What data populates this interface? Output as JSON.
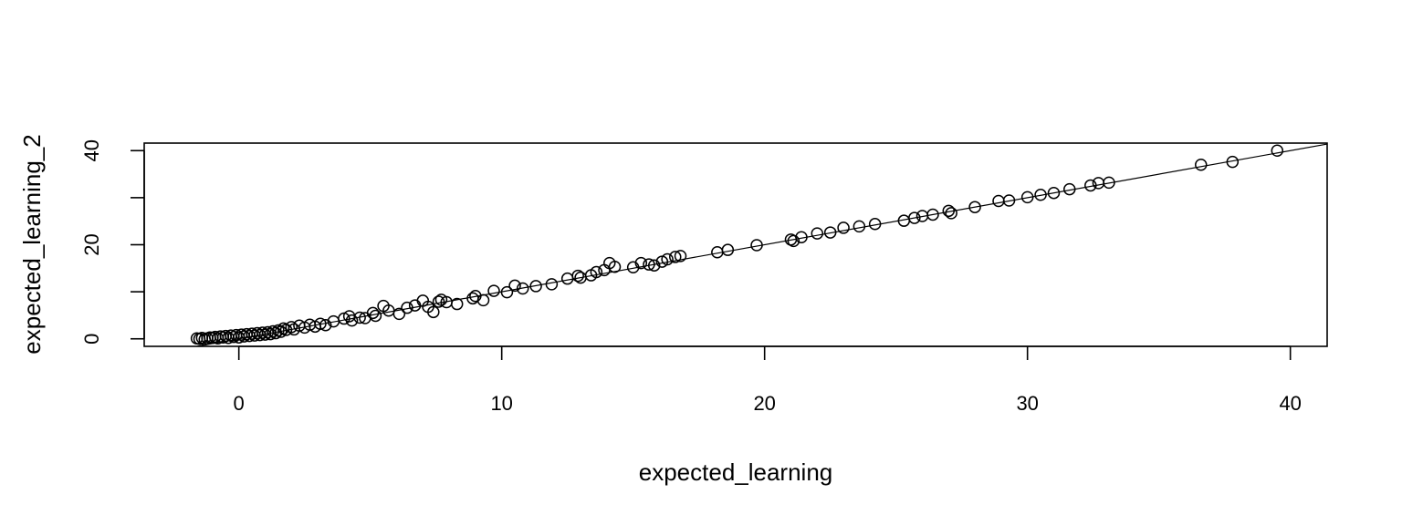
{
  "chart_data": {
    "type": "scatter",
    "title": "",
    "xlabel": "expected_learning",
    "ylabel": "expected_learning_2",
    "xlim": [
      -3.6,
      41.4
    ],
    "ylim": [
      -1.6,
      41.6
    ],
    "x_ticks": [
      0,
      10,
      20,
      30,
      40
    ],
    "y_ticks": [
      0,
      10,
      20,
      30,
      40
    ],
    "x_tick_labels": [
      "0",
      "10",
      "20",
      "30",
      "40"
    ],
    "y_tick_labels": [
      "0",
      "",
      "20",
      "",
      "40"
    ],
    "grid": false,
    "legend": "none",
    "marker": "open-circle",
    "colors": {
      "points": "#000000",
      "line": "#000000",
      "frame": "#000000"
    },
    "reference_line": {
      "intercept": 0,
      "slope": 1
    },
    "series": [
      {
        "points": [
          [
            -1.6,
            0.1
          ],
          [
            -1.5,
            0.0
          ],
          [
            -1.4,
            0.2
          ],
          [
            -1.3,
            -0.1
          ],
          [
            -1.2,
            0.1
          ],
          [
            -1.1,
            0.3
          ],
          [
            -1.0,
            0.2
          ],
          [
            -0.9,
            0.4
          ],
          [
            -0.8,
            0.1
          ],
          [
            -0.7,
            0.5
          ],
          [
            -0.6,
            0.3
          ],
          [
            -0.5,
            0.6
          ],
          [
            -0.4,
            0.2
          ],
          [
            -0.3,
            0.7
          ],
          [
            -0.2,
            0.4
          ],
          [
            -0.1,
            0.8
          ],
          [
            0.0,
            0.3
          ],
          [
            0.1,
            0.9
          ],
          [
            0.2,
            0.5
          ],
          [
            0.3,
            1.0
          ],
          [
            0.4,
            0.6
          ],
          [
            0.5,
            1.1
          ],
          [
            0.6,
            0.7
          ],
          [
            0.7,
            1.2
          ],
          [
            0.8,
            0.8
          ],
          [
            0.9,
            1.3
          ],
          [
            1.0,
            0.9
          ],
          [
            1.1,
            1.4
          ],
          [
            1.2,
            1.0
          ],
          [
            1.3,
            1.6
          ],
          [
            1.4,
            1.2
          ],
          [
            1.5,
            1.8
          ],
          [
            1.6,
            1.5
          ],
          [
            1.7,
            2.2
          ],
          [
            1.8,
            1.9
          ],
          [
            2.0,
            2.5
          ],
          [
            2.1,
            2.0
          ],
          [
            2.3,
            2.8
          ],
          [
            2.5,
            2.4
          ],
          [
            2.7,
            3.0
          ],
          [
            2.9,
            2.6
          ],
          [
            3.1,
            3.2
          ],
          [
            3.3,
            2.9
          ],
          [
            3.6,
            3.7
          ],
          [
            4.0,
            4.3
          ],
          [
            4.2,
            4.8
          ],
          [
            4.3,
            3.9
          ],
          [
            4.6,
            4.5
          ],
          [
            4.8,
            4.4
          ],
          [
            5.1,
            5.5
          ],
          [
            5.2,
            4.9
          ],
          [
            5.5,
            7.0
          ],
          [
            5.7,
            6.0
          ],
          [
            6.1,
            5.3
          ],
          [
            6.4,
            6.6
          ],
          [
            6.7,
            7.1
          ],
          [
            7.0,
            8.1
          ],
          [
            7.2,
            6.8
          ],
          [
            7.4,
            5.7
          ],
          [
            7.6,
            7.9
          ],
          [
            7.7,
            8.3
          ],
          [
            7.9,
            7.8
          ],
          [
            8.3,
            7.4
          ],
          [
            8.9,
            8.6
          ],
          [
            9.0,
            9.1
          ],
          [
            9.3,
            8.2
          ],
          [
            9.7,
            10.2
          ],
          [
            10.2,
            9.9
          ],
          [
            10.5,
            11.3
          ],
          [
            10.8,
            10.7
          ],
          [
            11.3,
            11.2
          ],
          [
            11.9,
            11.6
          ],
          [
            12.5,
            12.8
          ],
          [
            12.9,
            13.4
          ],
          [
            13.0,
            13.0
          ],
          [
            13.4,
            13.5
          ],
          [
            13.6,
            14.2
          ],
          [
            13.9,
            14.6
          ],
          [
            14.1,
            16.1
          ],
          [
            14.3,
            15.3
          ],
          [
            15.0,
            15.2
          ],
          [
            15.3,
            16.1
          ],
          [
            15.6,
            15.8
          ],
          [
            15.8,
            15.6
          ],
          [
            16.1,
            16.4
          ],
          [
            16.3,
            16.9
          ],
          [
            16.6,
            17.4
          ],
          [
            16.8,
            17.6
          ],
          [
            18.2,
            18.4
          ],
          [
            18.6,
            18.9
          ],
          [
            19.7,
            19.9
          ],
          [
            21.0,
            21.1
          ],
          [
            21.1,
            20.8
          ],
          [
            21.4,
            21.6
          ],
          [
            22.0,
            22.4
          ],
          [
            22.5,
            22.6
          ],
          [
            23.0,
            23.6
          ],
          [
            23.6,
            23.9
          ],
          [
            24.2,
            24.4
          ],
          [
            25.3,
            25.1
          ],
          [
            25.7,
            25.7
          ],
          [
            26.0,
            26.1
          ],
          [
            26.4,
            26.4
          ],
          [
            27.0,
            27.2
          ],
          [
            27.1,
            26.7
          ],
          [
            28.0,
            28.0
          ],
          [
            28.9,
            29.3
          ],
          [
            29.3,
            29.4
          ],
          [
            30.0,
            30.1
          ],
          [
            30.5,
            30.6
          ],
          [
            31.0,
            31.0
          ],
          [
            31.6,
            31.8
          ],
          [
            32.4,
            32.6
          ],
          [
            32.7,
            33.1
          ],
          [
            33.1,
            33.2
          ],
          [
            36.6,
            37.0
          ],
          [
            37.8,
            37.6
          ],
          [
            39.5,
            40.0
          ]
        ]
      }
    ]
  }
}
